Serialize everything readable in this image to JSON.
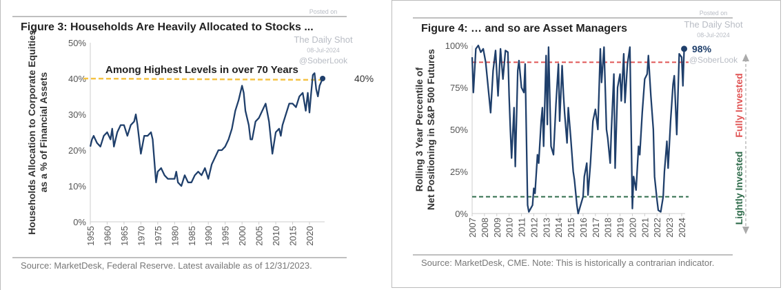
{
  "watermark": {
    "line1": "Posted on",
    "line2": "The Daily Shot",
    "line3": "08-Jul-2024",
    "line4": "@SoberLook"
  },
  "colors": {
    "series": "#1f3f6b",
    "highlight": "#f5c242",
    "fully": "#e05555",
    "lightly": "#2e6b4a",
    "arrow": "#aaaaaa"
  },
  "chart_data": [
    {
      "type": "line",
      "title": "Figure 3: Households Are Heavily Allocated to Stocks ...",
      "ylabel": "Households Allocation to Corporate Equities as a % of Financial Assets",
      "annotation": "Among Highest Levels in over 70 Years",
      "end_label": "40%",
      "reference_line": 40,
      "source": "Source: MarketDesk, Federal Reserve. Latest available as of 12/31/2023.",
      "xlim": [
        1955,
        2024
      ],
      "ylim": [
        0,
        50
      ],
      "grid": false,
      "x_ticks": [
        "1955",
        "1960",
        "1965",
        "1970",
        "1975",
        "1980",
        "1985",
        "1990",
        "1995",
        "2000",
        "2005",
        "2010",
        "2015",
        "2020"
      ],
      "y_ticks": [
        "0%",
        "10%",
        "20%",
        "30%",
        "40%",
        "50%"
      ],
      "x": [
        1955,
        1955.5,
        1956,
        1957,
        1958,
        1959,
        1960,
        1961,
        1961.5,
        1962,
        1963,
        1964,
        1965,
        1966,
        1967,
        1968,
        1968.5,
        1969,
        1970,
        1971,
        1972,
        1973,
        1973.5,
        1974,
        1974.5,
        1975,
        1976,
        1977,
        1978,
        1979,
        1980,
        1980.5,
        1981,
        1982,
        1983,
        1984,
        1985,
        1986,
        1987,
        1988,
        1989,
        1990,
        1991,
        1992,
        1993,
        1994,
        1995,
        1996,
        1997,
        1998,
        1999,
        2000,
        2000.5,
        2001,
        2002,
        2002.5,
        2003,
        2004,
        2005,
        2006,
        2007,
        2008,
        2009,
        2009.5,
        2010,
        2011,
        2011.5,
        2012,
        2013,
        2014,
        2015,
        2016,
        2017,
        2018,
        2018.9,
        2019.5,
        2020,
        2020.5,
        2021,
        2021.5,
        2022,
        2022.5,
        2023,
        2023.9
      ],
      "y": [
        21,
        23,
        24,
        22,
        21,
        24,
        25,
        23,
        26,
        21,
        25,
        27,
        27,
        24,
        27,
        28,
        30,
        27,
        19,
        24,
        24,
        25,
        23,
        17,
        11,
        14,
        15,
        13,
        12,
        12,
        12,
        14,
        11,
        10,
        13,
        11,
        11,
        13,
        14,
        13,
        15,
        12,
        16,
        18,
        20,
        20,
        21,
        23,
        26,
        31,
        34,
        38,
        36,
        31,
        27,
        23,
        23,
        28,
        29,
        31,
        33,
        28,
        19,
        22,
        25,
        26,
        24,
        27,
        30,
        33,
        33,
        32,
        35,
        36,
        31,
        36,
        30.5,
        36,
        41,
        41.5,
        37,
        35,
        38,
        40
      ]
    },
    {
      "type": "line",
      "title": "Figure 4: … and so are Asset Managers",
      "ylabel": "Rolling 3 Year Percentile of Net Positioning in S&P 500 Futures",
      "end_label": "98%",
      "reference_lines": [
        {
          "value": 90,
          "label": "Fully Invested"
        },
        {
          "value": 10,
          "label": "Lightly Invested"
        }
      ],
      "source": "Source: MarketDesk, CME. Note: This is historically a contrarian indicator.",
      "xlim": [
        2007,
        2024
      ],
      "ylim": [
        0,
        100
      ],
      "grid": false,
      "x_ticks": [
        "2007",
        "2008",
        "2009",
        "2010",
        "2011",
        "2012",
        "2013",
        "2014",
        "2015",
        "2016",
        "2017",
        "2018",
        "2019",
        "2020",
        "2021",
        "2022",
        "2023",
        "2024"
      ],
      "y_ticks": [
        "0%",
        "25%",
        "50%",
        "75%",
        "100%"
      ],
      "x": [
        2007,
        2007.1,
        2007.3,
        2007.5,
        2007.7,
        2007.9,
        2008.1,
        2008.3,
        2008.5,
        2008.7,
        2008.9,
        2009.1,
        2009.3,
        2009.5,
        2009.7,
        2009.9,
        2010,
        2010.1,
        2010.2,
        2010.4,
        2010.5,
        2010.7,
        2010.8,
        2011,
        2011.2,
        2011.3,
        2011.5,
        2011.6,
        2011.9,
        2012,
        2012.1,
        2012.3,
        2012.4,
        2012.6,
        2012.7,
        2012.8,
        2013,
        2013.1,
        2013.2,
        2013.4,
        2013.6,
        2013.8,
        2014,
        2014.1,
        2014.3,
        2014.4,
        2014.5,
        2014.7,
        2014.8,
        2015,
        2015.2,
        2015.3,
        2015.5,
        2015.6,
        2015.8,
        2016,
        2016.1,
        2016.3,
        2016.4,
        2016.6,
        2016.8,
        2017,
        2017.2,
        2017.4,
        2017.5,
        2017.7,
        2017.9,
        2018,
        2018.2,
        2018.3,
        2018.5,
        2018.6,
        2018.8,
        2019,
        2019.1,
        2019.3,
        2019.4,
        2019.6,
        2019.8,
        2020,
        2020.1,
        2020.3,
        2020.5,
        2020.6,
        2020.8,
        2021,
        2021.2,
        2021.3,
        2021.5,
        2021.7,
        2021.8,
        2022,
        2022.1,
        2022.3,
        2022.5,
        2022.6,
        2022.8,
        2022.9,
        2023.1,
        2023.3,
        2023.4,
        2023.6,
        2023.8,
        2024,
        2024.1,
        2024.2
      ],
      "y": [
        93,
        72,
        98,
        100,
        96,
        98,
        90,
        75,
        60,
        85,
        97,
        70,
        98,
        80,
        97,
        96,
        70,
        50,
        33,
        63,
        28,
        85,
        91,
        75,
        72,
        89,
        5,
        1,
        5,
        15,
        12,
        35,
        30,
        55,
        63,
        40,
        94,
        53,
        99,
        40,
        35,
        65,
        89,
        55,
        88,
        72,
        60,
        42,
        63,
        45,
        25,
        20,
        5,
        0,
        5,
        10,
        22,
        30,
        11,
        30,
        55,
        62,
        50,
        98,
        78,
        99,
        50,
        45,
        30,
        50,
        83,
        27,
        75,
        83,
        67,
        95,
        66,
        89,
        99,
        3,
        22,
        14,
        40,
        35,
        60,
        80,
        83,
        94,
        70,
        50,
        22,
        8,
        2,
        1,
        10,
        25,
        43,
        27,
        55,
        77,
        82,
        47,
        95,
        93,
        76,
        98
      ]
    }
  ]
}
